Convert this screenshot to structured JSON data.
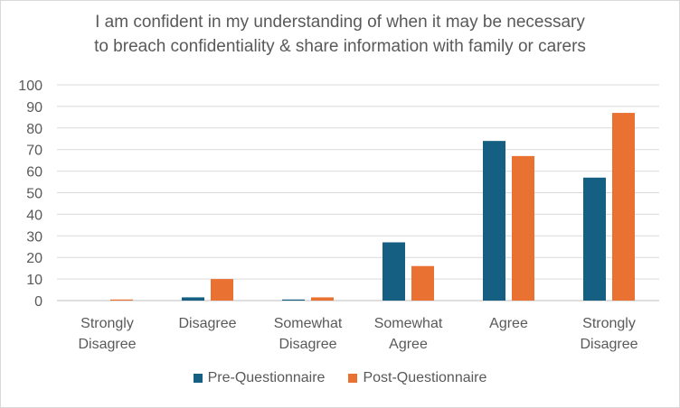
{
  "chart_data": {
    "type": "bar",
    "title_lines": [
      "I am confident in my understanding of when it may be necessary",
      "to breach confidentiality & share information with family or carers"
    ],
    "categories": [
      [
        "Strongly",
        "Disagree"
      ],
      [
        "Disagree"
      ],
      [
        "Somewhat",
        "Disagree"
      ],
      [
        "Somewhat",
        "Agree"
      ],
      [
        "Agree"
      ],
      [
        "Strongly",
        "Disagree"
      ]
    ],
    "series": [
      {
        "name": "Pre-Questionnaire",
        "color": "#156082",
        "values": [
          0,
          1.5,
          0.5,
          27,
          74,
          57
        ]
      },
      {
        "name": "Post-Questionnaire",
        "color": "#e97132",
        "values": [
          0.5,
          10,
          1.5,
          16,
          67,
          87
        ]
      }
    ],
    "ylim": [
      0,
      100
    ],
    "yticks": [
      "0",
      "10",
      "20",
      "30",
      "40",
      "50",
      "60",
      "70",
      "80",
      "90",
      "100"
    ],
    "grid": true,
    "legend_position": "bottom"
  }
}
